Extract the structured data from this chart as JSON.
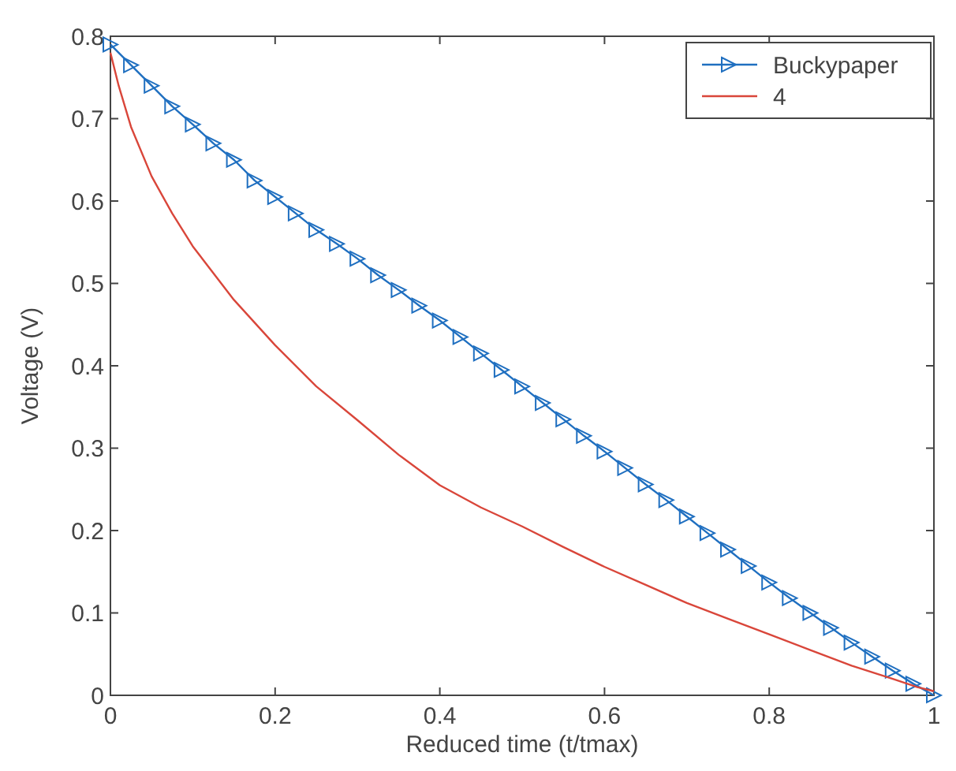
{
  "chart_data": {
    "type": "line",
    "xlabel": "Reduced time (t/tmax)",
    "ylabel": "Voltage (V)",
    "xlim": [
      0,
      1
    ],
    "ylim": [
      0,
      0.8
    ],
    "xticks": [
      0,
      0.2,
      0.4,
      0.6,
      0.8,
      1
    ],
    "yticks": [
      0,
      0.1,
      0.2,
      0.3,
      0.4,
      0.5,
      0.6,
      0.7,
      0.8
    ],
    "grid": false,
    "legend": "top right",
    "series": [
      {
        "name": "Buckypaper",
        "color": "#1f6fc0",
        "marker": "triangle",
        "x": [
          0,
          0.025,
          0.05,
          0.075,
          0.1,
          0.125,
          0.15,
          0.175,
          0.2,
          0.225,
          0.25,
          0.275,
          0.3,
          0.325,
          0.35,
          0.375,
          0.4,
          0.425,
          0.45,
          0.475,
          0.5,
          0.525,
          0.55,
          0.575,
          0.6,
          0.625,
          0.65,
          0.675,
          0.7,
          0.725,
          0.75,
          0.775,
          0.8,
          0.825,
          0.85,
          0.875,
          0.9,
          0.925,
          0.95,
          0.975,
          1
        ],
        "values": [
          0.79,
          0.765,
          0.74,
          0.715,
          0.693,
          0.67,
          0.65,
          0.625,
          0.605,
          0.585,
          0.565,
          0.548,
          0.53,
          0.51,
          0.492,
          0.473,
          0.455,
          0.435,
          0.415,
          0.395,
          0.375,
          0.355,
          0.335,
          0.315,
          0.296,
          0.276,
          0.256,
          0.237,
          0.217,
          0.197,
          0.177,
          0.157,
          0.137,
          0.118,
          0.1,
          0.082,
          0.064,
          0.047,
          0.03,
          0.014,
          0
        ]
      },
      {
        "name": "4",
        "color": "#d9463a",
        "marker": "none",
        "x": [
          0,
          0.01,
          0.025,
          0.05,
          0.075,
          0.1,
          0.15,
          0.2,
          0.25,
          0.3,
          0.35,
          0.4,
          0.45,
          0.5,
          0.55,
          0.6,
          0.65,
          0.7,
          0.75,
          0.8,
          0.85,
          0.9,
          0.95,
          0.98,
          1
        ],
        "values": [
          0.78,
          0.74,
          0.69,
          0.63,
          0.585,
          0.545,
          0.48,
          0.425,
          0.375,
          0.334,
          0.292,
          0.255,
          0.228,
          0.205,
          0.18,
          0.156,
          0.134,
          0.112,
          0.093,
          0.074,
          0.055,
          0.036,
          0.02,
          0.01,
          0.005
        ]
      }
    ]
  }
}
